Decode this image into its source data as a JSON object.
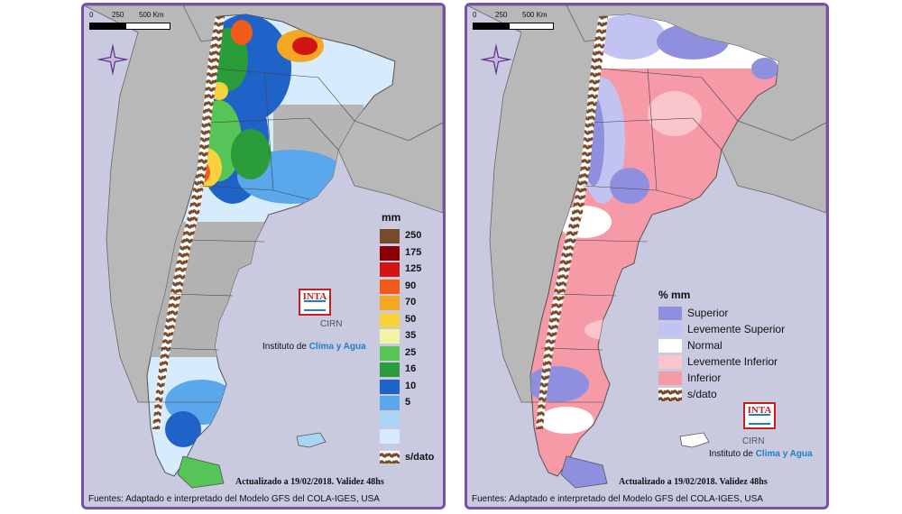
{
  "scale": {
    "ticks": [
      "0",
      "250",
      "500 Km"
    ]
  },
  "left_panel": {
    "legend_title": "mm",
    "ramp": [
      {
        "label": "250",
        "color": "#7a4b2a"
      },
      {
        "label": "175",
        "color": "#8b0000"
      },
      {
        "label": "125",
        "color": "#d11414"
      },
      {
        "label": "90",
        "color": "#f05a1a"
      },
      {
        "label": "70",
        "color": "#f5a623"
      },
      {
        "label": "50",
        "color": "#f7d23d"
      },
      {
        "label": "35",
        "color": "#f4f4a4"
      },
      {
        "label": "25",
        "color": "#56c456"
      },
      {
        "label": "16",
        "color": "#2a9d3a"
      },
      {
        "label": "10",
        "color": "#1f63c9"
      },
      {
        "label": "5",
        "color": "#5aa7ec"
      },
      {
        "label": "",
        "color": "#a8d4f7"
      },
      {
        "label": "",
        "color": "#d6ebfb"
      }
    ],
    "nodata_label": "s/dato"
  },
  "right_panel": {
    "legend_title": "% mm",
    "categories": [
      {
        "label": "Superior",
        "color": "#8f8fe0"
      },
      {
        "label": "Levemente Superior",
        "color": "#c3c3f2"
      },
      {
        "label": "Normal",
        "color": "#ffffff"
      },
      {
        "label": "Levemente Inferior",
        "color": "#fbc5cc"
      },
      {
        "label": "Inferior",
        "color": "#f59aa6"
      }
    ],
    "nodata_label": "s/dato"
  },
  "logo": {
    "text": "INTA",
    "sub": "CIRN",
    "institute_prefix": "Instituto de",
    "institute_highlight": "Clima y Agua"
  },
  "updated_text": "Actualizado a 19/02/2018. Validez 48hs",
  "sources_text": "Fuentes: Adaptado e interpretado del Modelo GFS del COLA-IGES, USA",
  "colors": {
    "frame": "#7b4fa8",
    "ocean": "#c9c9df",
    "land_outside": "#b8b8b8",
    "nodata_brown": "#7a4b2a"
  }
}
